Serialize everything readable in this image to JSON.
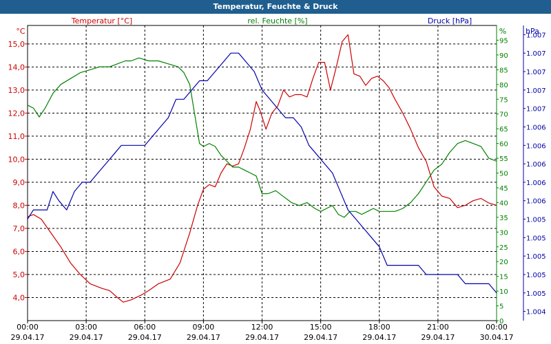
{
  "title": "Temperatur, Feuchte & Druck",
  "chart_data": {
    "type": "line",
    "grid": true,
    "xlim": [
      0,
      24
    ],
    "x_ticks": [
      {
        "time": "00:00",
        "date": "29.04.17"
      },
      {
        "time": "03:00",
        "date": "29.04.17"
      },
      {
        "time": "06:00",
        "date": "29.04.17"
      },
      {
        "time": "09:00",
        "date": "29.04.17"
      },
      {
        "time": "12:00",
        "date": "29.04.17"
      },
      {
        "time": "15:00",
        "date": "29.04.17"
      },
      {
        "time": "18:00",
        "date": "29.04.17"
      },
      {
        "time": "21:00",
        "date": "29.04.17"
      },
      {
        "time": "00:00",
        "date": "30.04.17"
      }
    ],
    "axes": {
      "temperature": {
        "label": "Temperatur [°C]",
        "unit": "°C",
        "ylim": [
          3.0,
          15.8
        ],
        "ticks": [
          "4,0",
          "5,0",
          "6,0",
          "7,0",
          "8,0",
          "9,0",
          "10,0",
          "11,0",
          "12,0",
          "13,0",
          "14,0",
          "15,0"
        ]
      },
      "humidity": {
        "label": "rel. Feuchte [%]",
        "unit": "%",
        "ylim": [
          0,
          100
        ],
        "ticks": [
          "0",
          "5",
          "10",
          "15",
          "20",
          "25",
          "30",
          "35",
          "40",
          "45",
          "50",
          "55",
          "60",
          "65",
          "70",
          "75",
          "80",
          "85",
          "90",
          "95"
        ]
      },
      "pressure": {
        "label": "Druck [hPa]",
        "unit": "hPa",
        "ylim": [
          1004.4,
          1007.6
        ],
        "ticks": [
          "1.004",
          "1.005",
          "1.005",
          "1.005",
          "1.005",
          "1.005",
          "1.006",
          "1.006",
          "1.006",
          "1.006",
          "1.006",
          "1.007",
          "1.007",
          "1.007",
          "1.007",
          "1.007"
        ]
      }
    },
    "series": [
      {
        "name": "Temperatur [°C]",
        "axis": "temperature",
        "color": "#cc0000",
        "x": [
          0,
          0.3,
          0.7,
          1.2,
          1.7,
          2.2,
          2.7,
          3.2,
          3.8,
          4.2,
          4.6,
          4.9,
          5.3,
          5.8,
          6.2,
          6.7,
          7.3,
          7.8,
          8.3,
          8.7,
          9.0,
          9.3,
          9.6,
          9.9,
          10.2,
          10.5,
          10.8,
          11.1,
          11.4,
          11.7,
          11.9,
          12.2,
          12.5,
          12.8,
          13.1,
          13.4,
          13.7,
          14.0,
          14.3,
          14.6,
          14.9,
          15.2,
          15.5,
          15.8,
          16.1,
          16.4,
          16.7,
          17.0,
          17.3,
          17.6,
          17.9,
          18.2,
          18.5,
          18.8,
          19.2,
          19.6,
          20.0,
          20.4,
          20.8,
          21.2,
          21.6,
          22.0,
          22.4,
          22.8,
          23.2,
          23.6,
          24.0
        ],
        "y": [
          7.5,
          7.6,
          7.4,
          6.8,
          6.2,
          5.5,
          5.0,
          4.6,
          4.4,
          4.3,
          4.0,
          3.8,
          3.9,
          4.1,
          4.3,
          4.6,
          4.8,
          5.5,
          6.8,
          8.0,
          8.7,
          8.9,
          8.8,
          9.4,
          9.8,
          9.7,
          9.8,
          10.5,
          11.3,
          12.5,
          12.1,
          11.3,
          12.0,
          12.3,
          13.0,
          12.7,
          12.8,
          12.8,
          12.7,
          13.5,
          14.2,
          14.2,
          13.0,
          14.0,
          15.1,
          15.4,
          13.7,
          13.6,
          13.2,
          13.5,
          13.6,
          13.4,
          13.1,
          12.6,
          12.0,
          11.3,
          10.5,
          9.9,
          8.8,
          8.4,
          8.3,
          7.9,
          8.0,
          8.2,
          8.3,
          8.1,
          8.0
        ]
      },
      {
        "name": "rel. Feuchte [%]",
        "axis": "humidity",
        "color": "#008000",
        "x": [
          0,
          0.3,
          0.6,
          0.9,
          1.3,
          1.7,
          2.2,
          2.7,
          3.2,
          3.7,
          4.2,
          4.6,
          5.0,
          5.3,
          5.7,
          6.2,
          6.7,
          7.2,
          7.7,
          8.0,
          8.3,
          8.6,
          8.8,
          9.0,
          9.3,
          9.6,
          9.9,
          10.2,
          10.5,
          10.8,
          11.1,
          11.4,
          11.7,
          12.0,
          12.3,
          12.7,
          13.1,
          13.5,
          13.9,
          14.3,
          14.7,
          15.0,
          15.3,
          15.6,
          15.9,
          16.2,
          16.5,
          16.8,
          17.1,
          17.4,
          17.7,
          18.0,
          18.4,
          18.8,
          19.2,
          19.6,
          20.0,
          20.4,
          20.8,
          21.2,
          21.6,
          22.0,
          22.4,
          22.8,
          23.2,
          23.6,
          24.0
        ],
        "y": [
          73,
          72,
          69,
          72,
          77,
          80,
          82,
          84,
          85,
          86,
          86,
          87,
          88,
          88,
          89,
          88,
          88,
          87,
          86,
          84,
          80,
          68,
          60,
          59,
          60,
          59,
          56,
          54,
          52,
          52,
          51,
          50,
          49,
          43,
          43,
          44,
          42,
          40,
          39,
          40,
          38,
          37,
          38,
          39,
          36,
          35,
          37,
          37,
          36,
          37,
          38,
          37,
          37,
          37,
          38,
          40,
          43,
          47,
          51,
          53,
          57,
          60,
          61,
          60,
          59,
          55,
          54
        ]
      },
      {
        "name": "Druck [hPa]",
        "axis": "pressure",
        "color": "#0000aa",
        "x": [
          0,
          0.3,
          0.6,
          1.0,
          1.3,
          1.6,
          2.0,
          2.4,
          2.8,
          3.2,
          3.6,
          4.0,
          4.4,
          4.8,
          5.2,
          5.6,
          6.0,
          6.4,
          6.8,
          7.2,
          7.6,
          8.0,
          8.4,
          8.8,
          9.2,
          9.6,
          10.0,
          10.4,
          10.8,
          11.2,
          11.6,
          12.0,
          12.4,
          12.8,
          13.2,
          13.6,
          14.0,
          14.4,
          14.8,
          15.2,
          15.6,
          16.0,
          16.4,
          16.8,
          17.2,
          17.6,
          18.0,
          18.4,
          18.8,
          19.2,
          19.6,
          20.0,
          20.4,
          20.8,
          21.2,
          21.6,
          22.0,
          22.4,
          22.8,
          23.2,
          23.6,
          24.0
        ],
        "y": [
          1005.5,
          1005.6,
          1005.6,
          1005.6,
          1005.8,
          1005.7,
          1005.6,
          1005.8,
          1005.9,
          1005.9,
          1006.0,
          1006.1,
          1006.2,
          1006.3,
          1006.3,
          1006.3,
          1006.3,
          1006.4,
          1006.5,
          1006.6,
          1006.8,
          1006.8,
          1006.9,
          1007.0,
          1007.0,
          1007.1,
          1007.2,
          1007.3,
          1007.3,
          1007.2,
          1007.1,
          1006.9,
          1006.8,
          1006.7,
          1006.6,
          1006.6,
          1006.5,
          1006.3,
          1006.2,
          1006.1,
          1006.0,
          1005.8,
          1005.6,
          1005.5,
          1005.4,
          1005.3,
          1005.2,
          1005.0,
          1005.0,
          1005.0,
          1005.0,
          1005.0,
          1004.9,
          1004.9,
          1004.9,
          1004.9,
          1004.9,
          1004.8,
          1004.8,
          1004.8,
          1004.8,
          1004.7
        ]
      }
    ]
  }
}
